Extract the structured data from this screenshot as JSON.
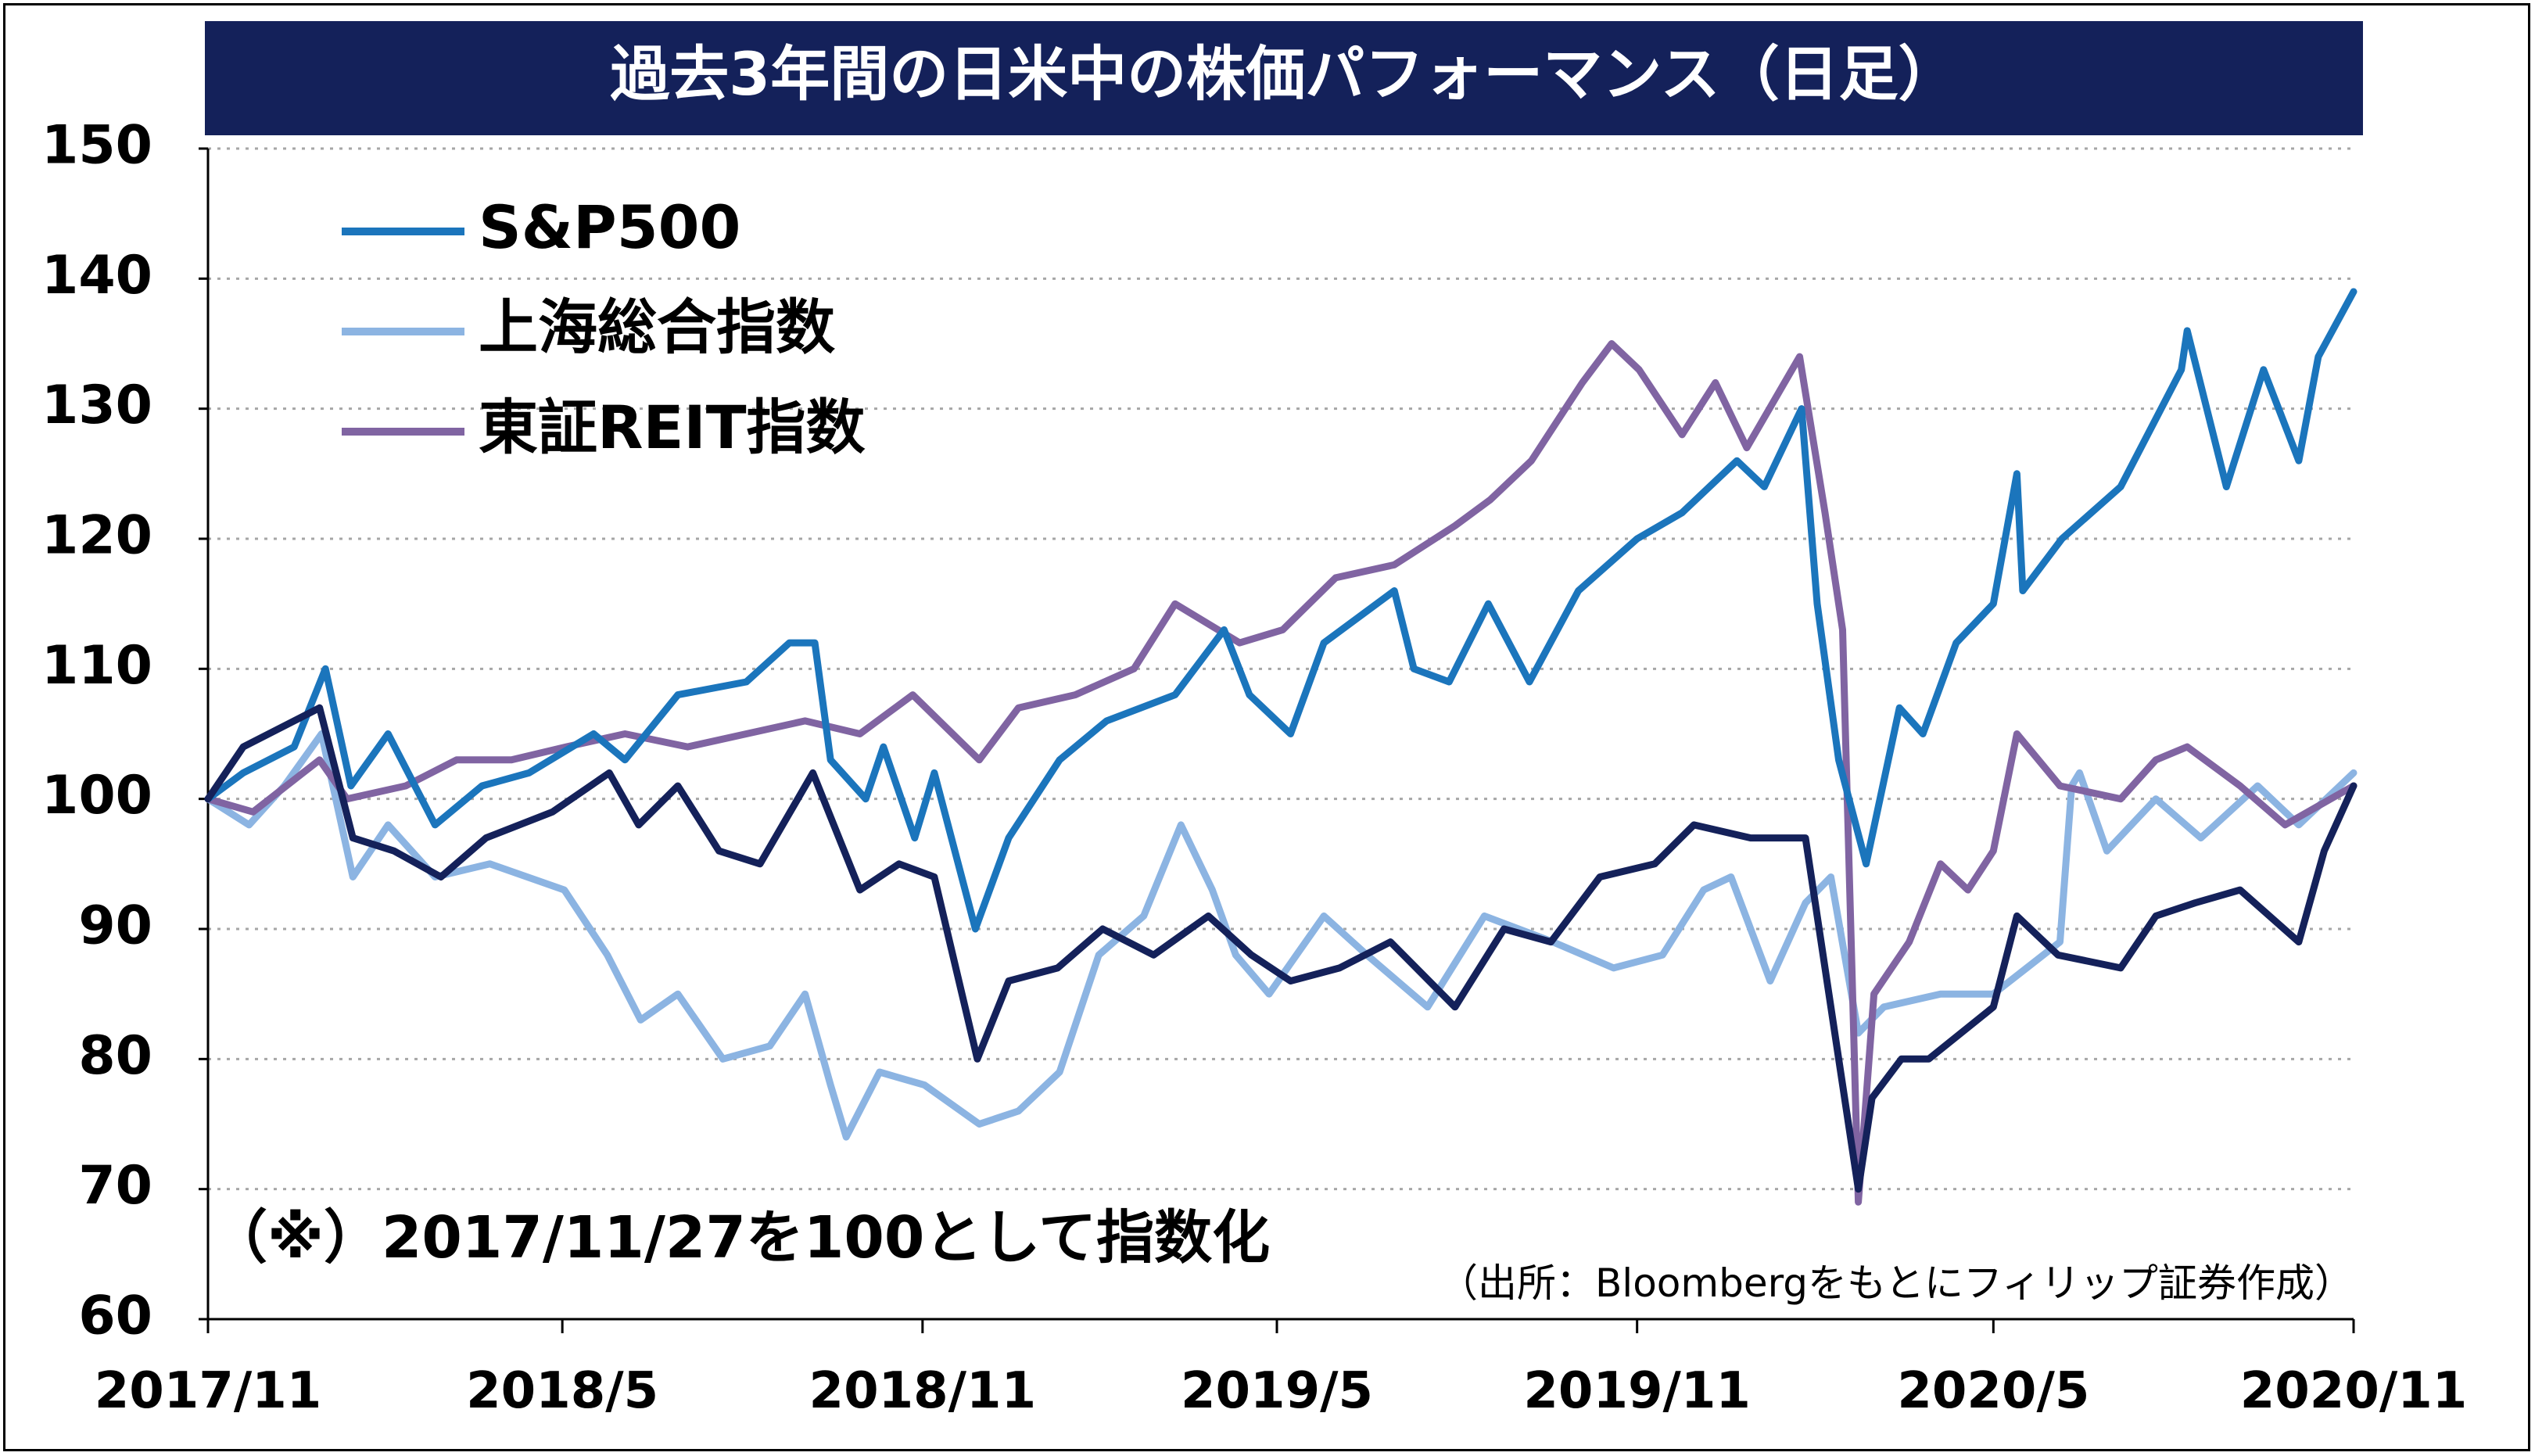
{
  "chart_data": {
    "type": "line",
    "title": "過去3年間の日米中の株価パフォーマンス（日足）",
    "ylim": [
      60,
      150
    ],
    "yticks": [
      60,
      70,
      80,
      90,
      100,
      110,
      120,
      130,
      140,
      150
    ],
    "x_range": [
      "2017-11-27",
      "2020-11-27"
    ],
    "xticks": [
      {
        "date": "2017-11-27",
        "label": "2017/11"
      },
      {
        "date": "2018-05-27",
        "label": "2018/5"
      },
      {
        "date": "2018-11-27",
        "label": "2018/11"
      },
      {
        "date": "2019-05-27",
        "label": "2019/5"
      },
      {
        "date": "2019-11-27",
        "label": "2019/11"
      },
      {
        "date": "2020-05-27",
        "label": "2020/5"
      },
      {
        "date": "2020-11-27",
        "label": "2020/11"
      }
    ],
    "grid": "horizontal-dotted",
    "legend_position": "top-left",
    "note": "（※）2017/11/27を100として指数化",
    "source": "（出所：Bloombergをもとにフィリップ証券作成）",
    "series": [
      {
        "name": "S&P500",
        "color": "#1b75bc",
        "points": [
          [
            "2017-11-27",
            100
          ],
          [
            "2017-12-15",
            102
          ],
          [
            "2018-01-10",
            104
          ],
          [
            "2018-01-26",
            110
          ],
          [
            "2018-02-08",
            101
          ],
          [
            "2018-02-27",
            105
          ],
          [
            "2018-03-23",
            98
          ],
          [
            "2018-04-16",
            101
          ],
          [
            "2018-05-10",
            102
          ],
          [
            "2018-06-12",
            105
          ],
          [
            "2018-06-28",
            103
          ],
          [
            "2018-07-25",
            108
          ],
          [
            "2018-08-29",
            109
          ],
          [
            "2018-09-20",
            112
          ],
          [
            "2018-10-03",
            112
          ],
          [
            "2018-10-11",
            103
          ],
          [
            "2018-10-29",
            100
          ],
          [
            "2018-11-07",
            104
          ],
          [
            "2018-11-23",
            97
          ],
          [
            "2018-12-03",
            102
          ],
          [
            "2018-12-24",
            90
          ],
          [
            "2019-01-10",
            97
          ],
          [
            "2019-02-05",
            103
          ],
          [
            "2019-03-01",
            106
          ],
          [
            "2019-04-05",
            108
          ],
          [
            "2019-04-30",
            113
          ],
          [
            "2019-05-13",
            108
          ],
          [
            "2019-06-03",
            105
          ],
          [
            "2019-06-20",
            112
          ],
          [
            "2019-07-26",
            116
          ],
          [
            "2019-08-05",
            110
          ],
          [
            "2019-08-23",
            109
          ],
          [
            "2019-09-12",
            115
          ],
          [
            "2019-10-03",
            109
          ],
          [
            "2019-10-28",
            116
          ],
          [
            "2019-11-27",
            120
          ],
          [
            "2019-12-20",
            122
          ],
          [
            "2020-01-17",
            126
          ],
          [
            "2020-01-31",
            124
          ],
          [
            "2020-02-19",
            130
          ],
          [
            "2020-02-27",
            115
          ],
          [
            "2020-03-09",
            103
          ],
          [
            "2020-03-23",
            95
          ],
          [
            "2020-04-09",
            107
          ],
          [
            "2020-04-21",
            105
          ],
          [
            "2020-05-08",
            112
          ],
          [
            "2020-05-27",
            115
          ],
          [
            "2020-06-08",
            125
          ],
          [
            "2020-06-11",
            116
          ],
          [
            "2020-07-01",
            120
          ],
          [
            "2020-07-31",
            124
          ],
          [
            "2020-08-31",
            133
          ],
          [
            "2020-09-03",
            136
          ],
          [
            "2020-09-23",
            124
          ],
          [
            "2020-10-12",
            133
          ],
          [
            "2020-10-30",
            126
          ],
          [
            "2020-11-09",
            134
          ],
          [
            "2020-11-27",
            139
          ]
        ]
      },
      {
        "name": "上海総合指数",
        "color": "#8cb4e2",
        "points": [
          [
            "2017-11-27",
            100
          ],
          [
            "2017-12-18",
            98
          ],
          [
            "2018-01-05",
            101
          ],
          [
            "2018-01-24",
            105
          ],
          [
            "2018-02-09",
            94
          ],
          [
            "2018-02-27",
            98
          ],
          [
            "2018-03-23",
            94
          ],
          [
            "2018-04-20",
            95
          ],
          [
            "2018-05-28",
            93
          ],
          [
            "2018-06-19",
            88
          ],
          [
            "2018-07-06",
            83
          ],
          [
            "2018-07-25",
            85
          ],
          [
            "2018-08-17",
            80
          ],
          [
            "2018-09-10",
            81
          ],
          [
            "2018-09-28",
            85
          ],
          [
            "2018-10-11",
            78
          ],
          [
            "2018-10-19",
            74
          ],
          [
            "2018-11-05",
            79
          ],
          [
            "2018-11-28",
            78
          ],
          [
            "2018-12-26",
            75
          ],
          [
            "2019-01-15",
            76
          ],
          [
            "2019-02-05",
            79
          ],
          [
            "2019-02-25",
            88
          ],
          [
            "2019-03-20",
            91
          ],
          [
            "2019-04-08",
            98
          ],
          [
            "2019-04-24",
            93
          ],
          [
            "2019-05-06",
            88
          ],
          [
            "2019-05-23",
            85
          ],
          [
            "2019-06-20",
            91
          ],
          [
            "2019-07-12",
            88
          ],
          [
            "2019-08-12",
            84
          ],
          [
            "2019-09-10",
            91
          ],
          [
            "2019-10-15",
            89
          ],
          [
            "2019-11-15",
            87
          ],
          [
            "2019-12-10",
            88
          ],
          [
            "2019-12-31",
            93
          ],
          [
            "2020-01-14",
            94
          ],
          [
            "2020-02-03",
            86
          ],
          [
            "2020-02-21",
            92
          ],
          [
            "2020-03-05",
            94
          ],
          [
            "2020-03-19",
            82
          ],
          [
            "2020-04-01",
            84
          ],
          [
            "2020-04-30",
            85
          ],
          [
            "2020-05-27",
            85
          ],
          [
            "2020-06-30",
            89
          ],
          [
            "2020-07-06",
            101
          ],
          [
            "2020-07-10",
            102
          ],
          [
            "2020-07-24",
            96
          ],
          [
            "2020-08-18",
            100
          ],
          [
            "2020-09-10",
            97
          ],
          [
            "2020-10-09",
            101
          ],
          [
            "2020-10-30",
            98
          ],
          [
            "2020-11-27",
            102
          ]
        ]
      },
      {
        "name": "東証REIT指数",
        "color": "#8064a2",
        "points": [
          [
            "2017-11-27",
            100
          ],
          [
            "2017-12-20",
            99
          ],
          [
            "2018-01-23",
            103
          ],
          [
            "2018-02-06",
            100
          ],
          [
            "2018-03-08",
            101
          ],
          [
            "2018-04-03",
            103
          ],
          [
            "2018-05-01",
            103
          ],
          [
            "2018-05-29",
            104
          ],
          [
            "2018-06-28",
            105
          ],
          [
            "2018-07-30",
            104
          ],
          [
            "2018-08-29",
            105
          ],
          [
            "2018-09-28",
            106
          ],
          [
            "2018-10-26",
            105
          ],
          [
            "2018-11-22",
            108
          ],
          [
            "2018-12-26",
            103
          ],
          [
            "2019-01-15",
            107
          ],
          [
            "2019-02-13",
            108
          ],
          [
            "2019-03-15",
            110
          ],
          [
            "2019-04-05",
            115
          ],
          [
            "2019-05-08",
            112
          ],
          [
            "2019-05-30",
            113
          ],
          [
            "2019-06-26",
            117
          ],
          [
            "2019-07-26",
            118
          ],
          [
            "2019-08-26",
            121
          ],
          [
            "2019-09-13",
            123
          ],
          [
            "2019-10-04",
            126
          ],
          [
            "2019-10-30",
            132
          ],
          [
            "2019-11-14",
            135
          ],
          [
            "2019-11-28",
            133
          ],
          [
            "2019-12-20",
            128
          ],
          [
            "2020-01-06",
            132
          ],
          [
            "2020-01-22",
            127
          ],
          [
            "2020-02-18",
            134
          ],
          [
            "2020-03-02",
            122
          ],
          [
            "2020-03-11",
            113
          ],
          [
            "2020-03-19",
            69
          ],
          [
            "2020-03-27",
            85
          ],
          [
            "2020-04-14",
            89
          ],
          [
            "2020-04-30",
            95
          ],
          [
            "2020-05-14",
            93
          ],
          [
            "2020-05-27",
            96
          ],
          [
            "2020-06-08",
            105
          ],
          [
            "2020-06-30",
            101
          ],
          [
            "2020-07-31",
            100
          ],
          [
            "2020-08-18",
            103
          ],
          [
            "2020-09-03",
            104
          ],
          [
            "2020-09-30",
            101
          ],
          [
            "2020-10-23",
            98
          ],
          [
            "2020-11-27",
            101
          ]
        ]
      },
      {
        "name": "",
        "color": "#14215a",
        "points": [
          [
            "2017-11-27",
            100
          ],
          [
            "2017-12-15",
            104
          ],
          [
            "2018-01-10",
            106
          ],
          [
            "2018-01-23",
            107
          ],
          [
            "2018-02-09",
            97
          ],
          [
            "2018-03-02",
            96
          ],
          [
            "2018-03-26",
            94
          ],
          [
            "2018-04-18",
            97
          ],
          [
            "2018-05-22",
            99
          ],
          [
            "2018-06-20",
            102
          ],
          [
            "2018-07-05",
            98
          ],
          [
            "2018-07-25",
            101
          ],
          [
            "2018-08-15",
            96
          ],
          [
            "2018-09-05",
            95
          ],
          [
            "2018-10-02",
            102
          ],
          [
            "2018-10-26",
            93
          ],
          [
            "2018-11-15",
            95
          ],
          [
            "2018-12-03",
            94
          ],
          [
            "2018-12-25",
            80
          ],
          [
            "2019-01-10",
            86
          ],
          [
            "2019-02-04",
            87
          ],
          [
            "2019-02-27",
            90
          ],
          [
            "2019-03-25",
            88
          ],
          [
            "2019-04-22",
            91
          ],
          [
            "2019-05-14",
            88
          ],
          [
            "2019-06-03",
            86
          ],
          [
            "2019-06-28",
            87
          ],
          [
            "2019-07-24",
            89
          ],
          [
            "2019-08-26",
            84
          ],
          [
            "2019-09-20",
            90
          ],
          [
            "2019-10-14",
            89
          ],
          [
            "2019-11-08",
            94
          ],
          [
            "2019-12-06",
            95
          ],
          [
            "2019-12-26",
            98
          ],
          [
            "2020-01-24",
            97
          ],
          [
            "2020-02-21",
            97
          ],
          [
            "2020-03-09",
            80
          ],
          [
            "2020-03-19",
            70
          ],
          [
            "2020-03-26",
            77
          ],
          [
            "2020-04-10",
            80
          ],
          [
            "2020-04-24",
            80
          ],
          [
            "2020-05-27",
            84
          ],
          [
            "2020-06-08",
            91
          ],
          [
            "2020-06-29",
            88
          ],
          [
            "2020-07-31",
            87
          ],
          [
            "2020-08-18",
            91
          ],
          [
            "2020-09-07",
            92
          ],
          [
            "2020-09-30",
            93
          ],
          [
            "2020-10-30",
            89
          ],
          [
            "2020-11-12",
            96
          ],
          [
            "2020-11-27",
            101
          ]
        ]
      }
    ]
  }
}
